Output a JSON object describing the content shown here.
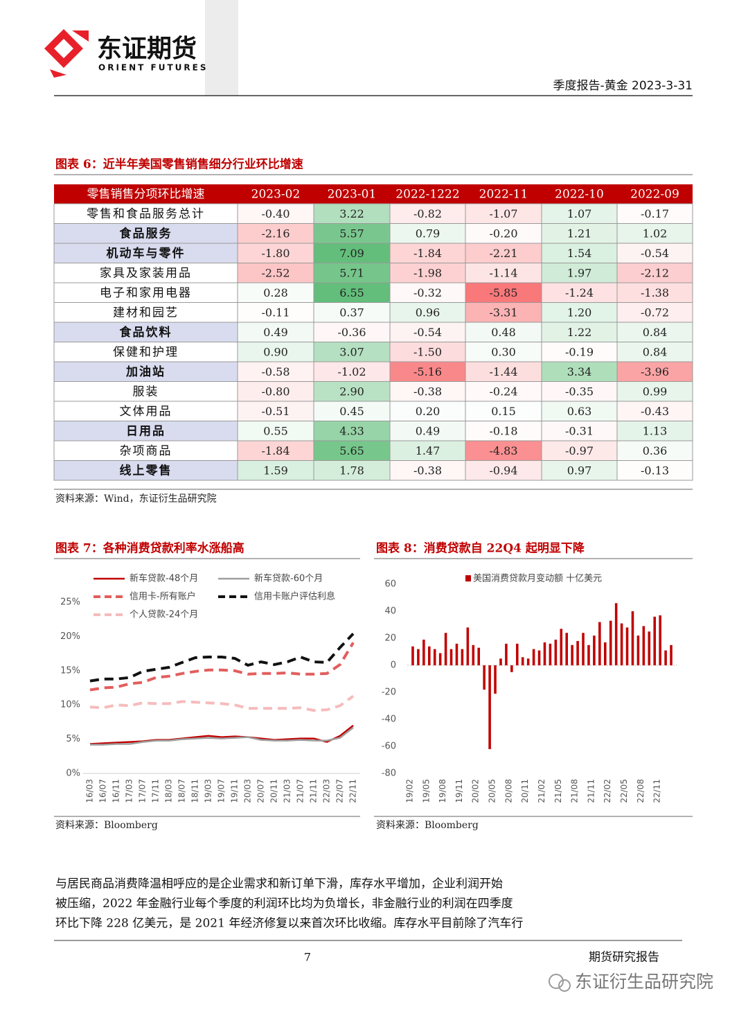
{
  "header": {
    "logo_cn": "东证期货",
    "logo_en": "ORIENT FUTURES",
    "report": "季度报告-黄金  2023-3-31"
  },
  "table": {
    "title": "图表 6：近半年美国零售销售细分行业环比增速",
    "columns": [
      "零售销售分项环比增速",
      "2023-02",
      "2023-01",
      "2022-1222",
      "2022-11",
      "2022-10",
      "2022-09"
    ],
    "rows": [
      {
        "label": "零售和食品服务总计",
        "highlight": false,
        "values": [
          "-0.40",
          "3.22",
          "-0.82",
          "-1.07",
          "1.07",
          "-0.17"
        ]
      },
      {
        "label": "食品服务",
        "highlight": true,
        "values": [
          "-2.16",
          "5.57",
          "0.79",
          "-0.20",
          "1.21",
          "1.02"
        ]
      },
      {
        "label": "机动车与零件",
        "highlight": true,
        "values": [
          "-1.80",
          "7.09",
          "-1.84",
          "-2.21",
          "1.54",
          "-0.54"
        ]
      },
      {
        "label": "家具及家装用品",
        "highlight": false,
        "values": [
          "-2.52",
          "5.71",
          "-1.98",
          "-1.14",
          "1.97",
          "-2.12"
        ]
      },
      {
        "label": "电子和家用电器",
        "highlight": false,
        "values": [
          "0.28",
          "6.55",
          "-0.32",
          "-5.85",
          "-1.24",
          "-1.38"
        ]
      },
      {
        "label": "建材和园艺",
        "highlight": false,
        "values": [
          "-0.11",
          "0.37",
          "0.96",
          "-3.31",
          "1.20",
          "-0.72"
        ]
      },
      {
        "label": "食品饮料",
        "highlight": true,
        "values": [
          "0.49",
          "-0.36",
          "-0.54",
          "0.48",
          "1.22",
          "0.84"
        ]
      },
      {
        "label": "保健和护理",
        "highlight": false,
        "values": [
          "0.90",
          "3.07",
          "-1.50",
          "0.30",
          "-0.19",
          "0.84"
        ]
      },
      {
        "label": "加油站",
        "highlight": true,
        "values": [
          "-0.58",
          "-1.02",
          "-5.16",
          "-1.44",
          "3.34",
          "-3.96"
        ]
      },
      {
        "label": "服装",
        "highlight": false,
        "values": [
          "-0.80",
          "2.90",
          "-0.38",
          "-0.24",
          "-0.35",
          "0.99"
        ]
      },
      {
        "label": "文体用品",
        "highlight": false,
        "values": [
          "-0.51",
          "0.45",
          "0.20",
          "0.15",
          "0.63",
          "-0.43"
        ]
      },
      {
        "label": "日用品",
        "highlight": true,
        "values": [
          "0.55",
          "4.33",
          "0.49",
          "-0.18",
          "-0.31",
          "1.13"
        ]
      },
      {
        "label": "杂项商品",
        "highlight": false,
        "values": [
          "-1.84",
          "5.65",
          "1.47",
          "-4.83",
          "-0.97",
          "0.36"
        ]
      },
      {
        "label": "线上零售",
        "highlight": true,
        "values": [
          "1.59",
          "1.78",
          "-0.38",
          "-0.94",
          "0.97",
          "-0.13"
        ]
      }
    ],
    "source": "资料来源：Wind，东证衍生品研究院"
  },
  "chart_data": [
    {
      "type": "line",
      "title": "图表 7：各种消费贷款利率水涨船高",
      "categories": [
        "16/03",
        "16/07",
        "16/11",
        "17/03",
        "17/07",
        "17/11",
        "18/03",
        "18/07",
        "18/11",
        "19/03",
        "19/07",
        "19/11",
        "20/03",
        "20/07",
        "20/11",
        "21/03",
        "21/07",
        "21/11",
        "22/03",
        "22/07",
        "22/11"
      ],
      "series": [
        {
          "name": "新车贷款-48个月",
          "color": "#c00000",
          "style": "solid",
          "values": [
            4.3,
            4.4,
            4.5,
            4.6,
            4.7,
            4.9,
            4.9,
            5.1,
            5.3,
            5.5,
            5.3,
            5.4,
            5.3,
            5.1,
            4.9,
            5.0,
            5.1,
            5.1,
            4.6,
            5.5,
            7.0
          ]
        },
        {
          "name": "新车贷款-60个月",
          "color": "#9e9e9e",
          "style": "solid",
          "values": [
            4.2,
            4.2,
            4.3,
            4.3,
            4.6,
            4.8,
            4.8,
            5.0,
            5.1,
            5.2,
            5.1,
            5.2,
            5.3,
            4.9,
            4.8,
            4.8,
            4.9,
            4.8,
            4.8,
            5.2,
            6.7
          ]
        },
        {
          "name": "信用卡-所有账户",
          "color": "#e35d5d",
          "style": "dashed",
          "values": [
            12.2,
            12.5,
            12.6,
            13.1,
            13.3,
            14.0,
            14.2,
            14.6,
            14.9,
            15.1,
            15.1,
            15.0,
            14.5,
            14.6,
            14.6,
            14.7,
            14.5,
            14.5,
            14.6,
            15.9,
            19.1
          ]
        },
        {
          "name": "信用卡账户评估利息",
          "color": "#111111",
          "style": "dashed",
          "values": [
            13.5,
            13.8,
            13.8,
            14.0,
            14.9,
            15.2,
            15.5,
            16.2,
            16.9,
            17.0,
            17.0,
            16.8,
            15.8,
            16.3,
            15.9,
            16.3,
            17.0,
            16.3,
            16.2,
            18.4,
            20.4
          ]
        },
        {
          "name": "个人贷款-24个月",
          "color": "#f5bcbc",
          "style": "dashed",
          "values": [
            9.7,
            9.6,
            10.0,
            9.9,
            10.3,
            10.2,
            10.2,
            10.5,
            10.4,
            10.3,
            10.2,
            10.0,
            9.5,
            9.5,
            9.5,
            9.5,
            9.6,
            9.2,
            9.3,
            9.9,
            11.3
          ]
        }
      ],
      "ylim": [
        0,
        25
      ],
      "yticks": [
        {
          "value": 0,
          "label": "0%"
        },
        {
          "value": 5,
          "label": "5%"
        },
        {
          "value": 10,
          "label": "10%"
        },
        {
          "value": 15,
          "label": "15%"
        },
        {
          "value": 20,
          "label": "20%"
        },
        {
          "value": 25,
          "label": "25%"
        }
      ],
      "grid": false,
      "source": "资料来源：Bloomberg"
    },
    {
      "type": "bar",
      "title": "图表 8：消费贷款自 22Q4 起明显下降",
      "categories": [
        "19/02",
        null,
        null,
        "19/05",
        null,
        null,
        "19/08",
        null,
        null,
        "19/11",
        null,
        null,
        "20/02",
        null,
        null,
        "20/05",
        null,
        null,
        "20/08",
        null,
        null,
        "20/11",
        null,
        null,
        "21/02",
        null,
        null,
        "21/05",
        null,
        null,
        "21/08",
        null,
        null,
        "21/11",
        null,
        null,
        "22/02",
        null,
        null,
        "22/05",
        null,
        null,
        "22/08",
        null,
        null,
        "22/11",
        null,
        null
      ],
      "series": [
        {
          "name": "美国消费贷款月变动额 十亿美元",
          "color": "#c00000",
          "values": [
            14,
            12,
            19,
            14,
            12,
            9,
            24,
            12,
            16,
            12,
            28,
            15,
            13,
            -18,
            -62,
            -21,
            5,
            16,
            -5,
            16,
            6,
            5,
            12,
            11,
            17,
            16,
            19,
            27,
            24,
            15,
            18,
            24,
            15,
            22,
            32,
            17,
            33,
            46,
            31,
            28,
            40,
            22,
            29,
            25,
            36,
            37,
            11,
            15
          ]
        }
      ],
      "ylim": [
        -80,
        60
      ],
      "yticks": [
        -80,
        -60,
        -40,
        -20,
        0,
        20,
        40,
        60
      ],
      "grid": false,
      "source": "资料来源：Bloomberg"
    }
  ],
  "paragraph": [
    "与居民商品消费降温相呼应的是企业需求和新订单下滑，库存水平增加，企业利润开始",
    "被压缩，2022 年金融行业每个季度的利润环比均为负增长，非金融行业的利润在四季度",
    "环比下降 228 亿美元，是 2021 年经济修复以来首次环比收缩。库存水平目前除了汽车行"
  ],
  "footer": {
    "page": "7",
    "label": "期货研究报告",
    "watermark": "东证衍生品研究院"
  }
}
